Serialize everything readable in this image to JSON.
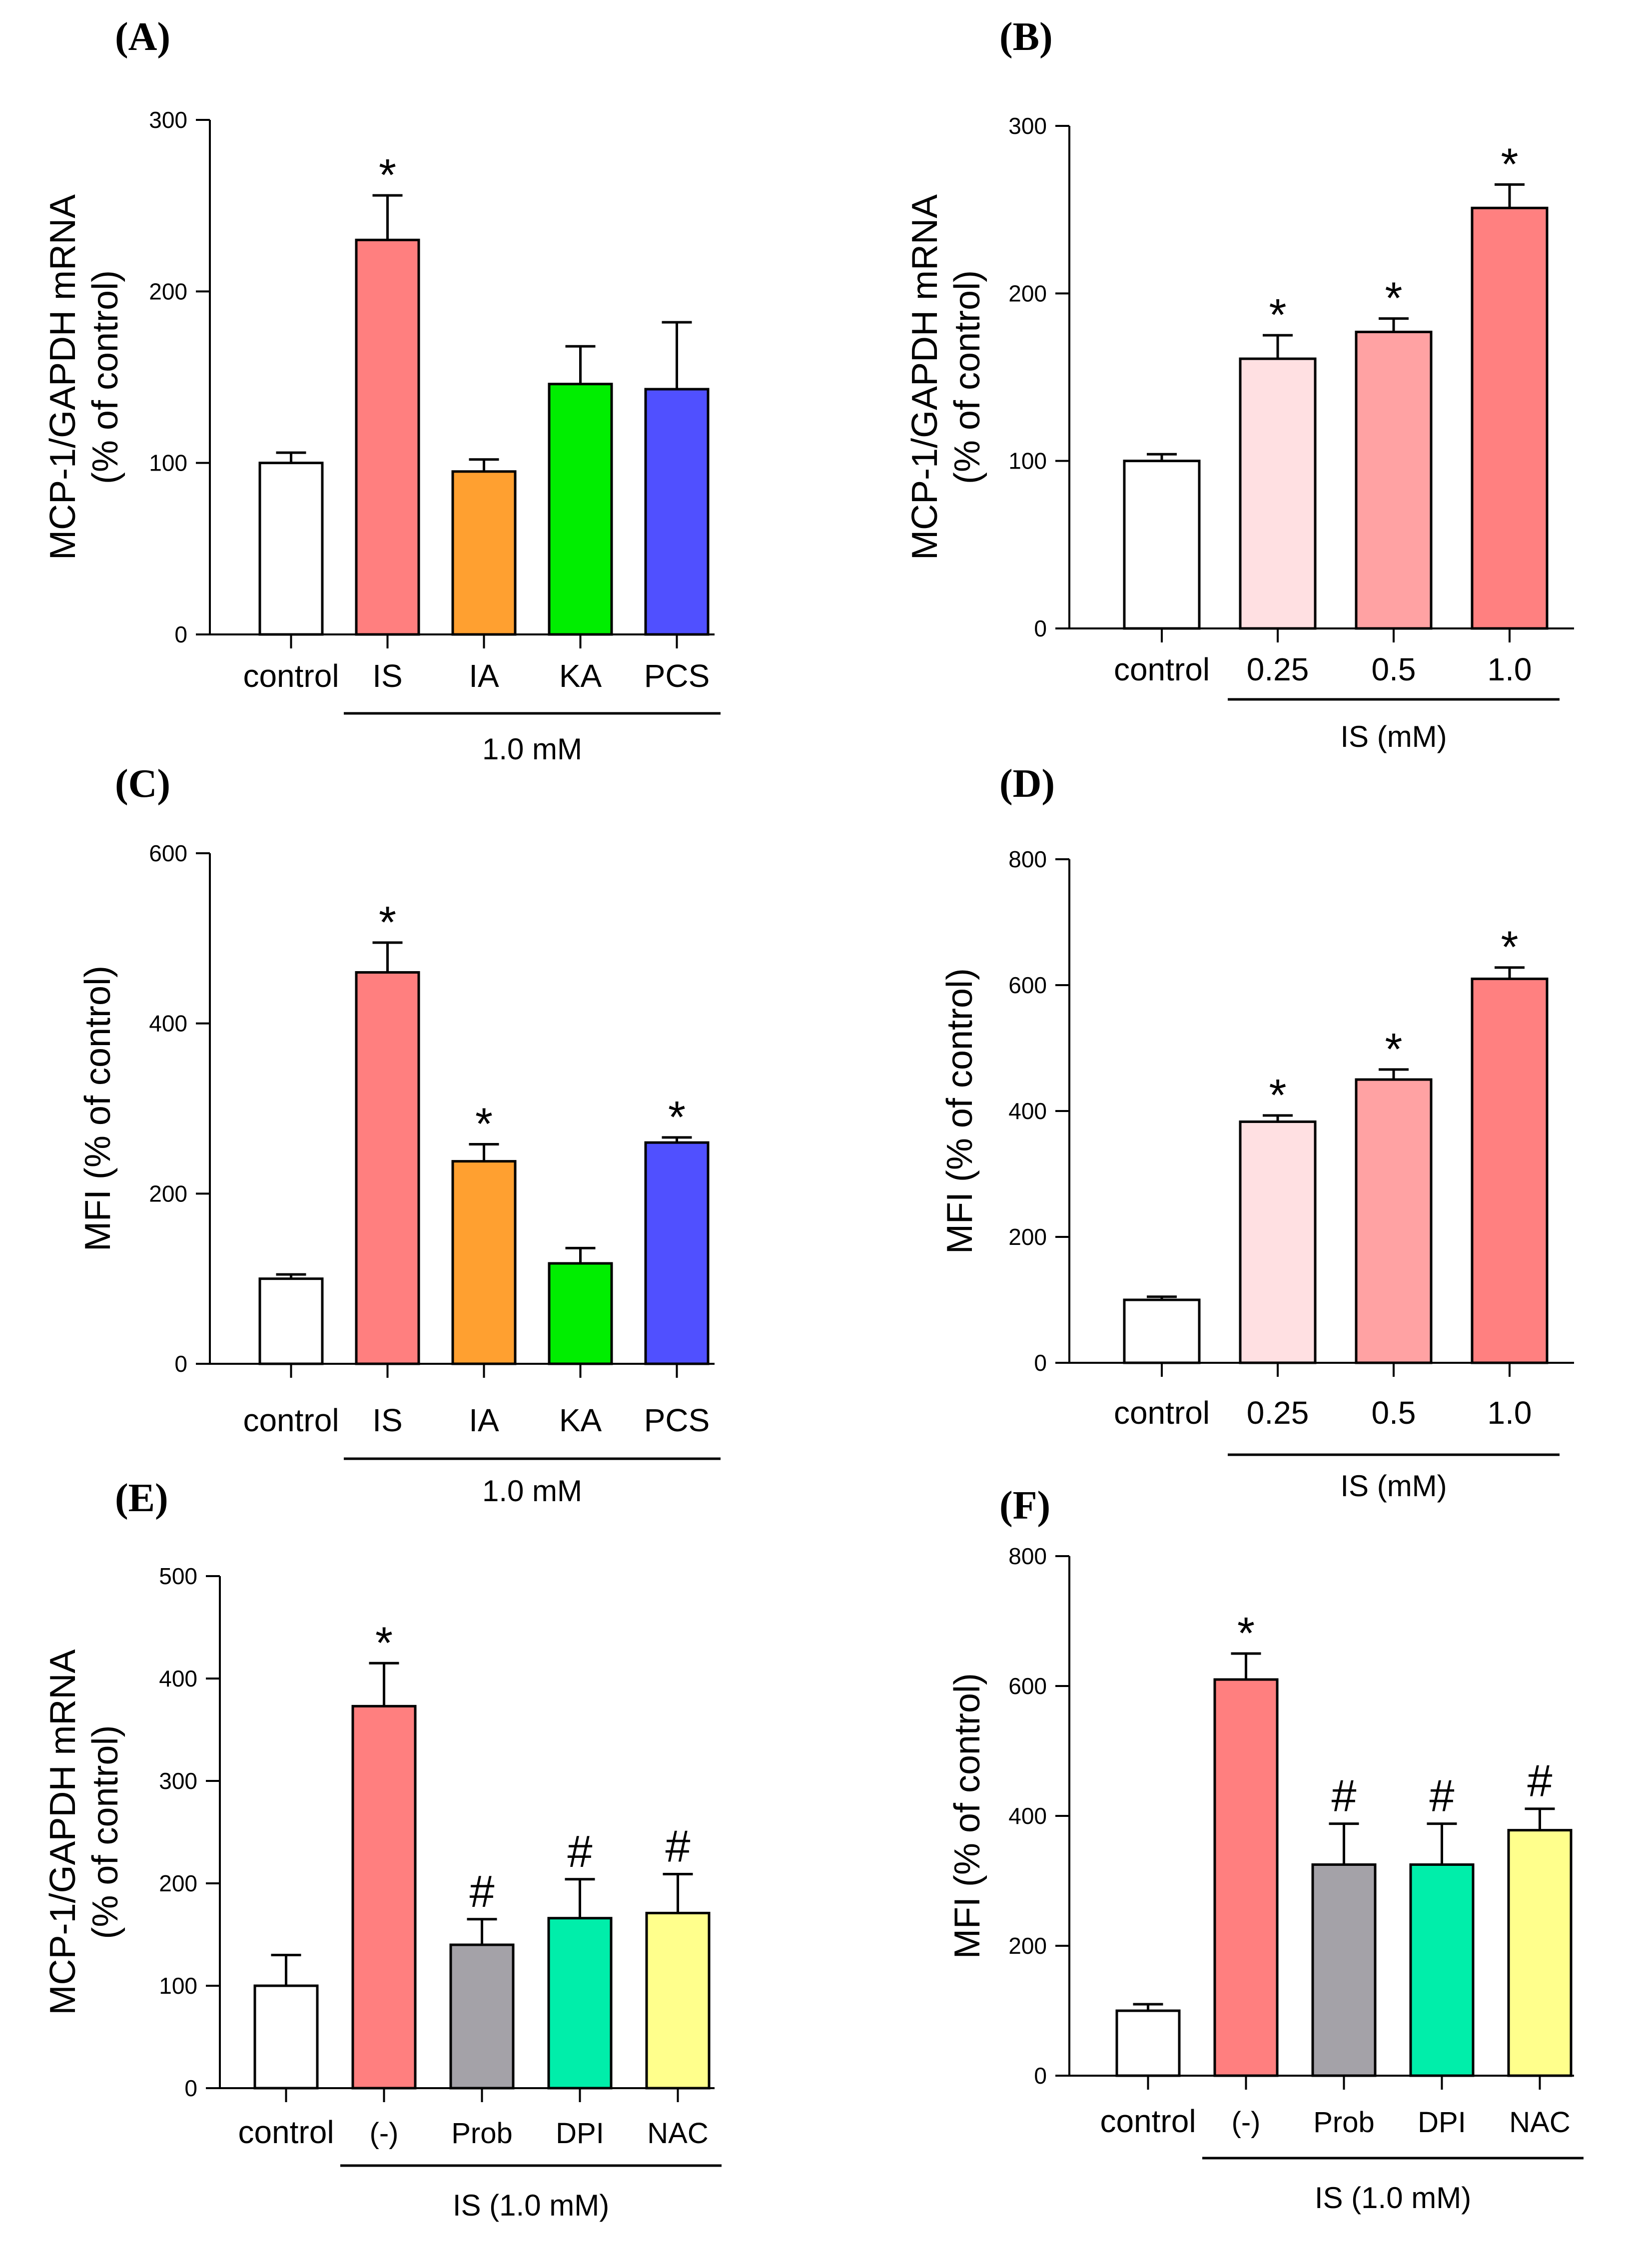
{
  "chart_data": [
    {
      "id": "A",
      "type": "bar",
      "panel_label": "(A)",
      "ylabel_lines": [
        "MCP-1/GAPDH mRNA",
        "(% of control)"
      ],
      "ylim": [
        0,
        300
      ],
      "yticks": [
        0,
        100,
        200,
        300
      ],
      "categories": [
        "control",
        "IS",
        "IA",
        "KA",
        "PCS"
      ],
      "values": [
        100,
        230,
        95,
        146,
        143
      ],
      "errors": [
        6,
        26,
        7,
        22,
        39
      ],
      "colors": [
        "#FFFFFF",
        "#FF7F7F",
        "#FFA030",
        "#00EE00",
        "#5050FF"
      ],
      "significance": [
        "",
        "*",
        "",
        "",
        ""
      ],
      "group": {
        "label": "1.0 mM",
        "from": 1,
        "to": 4
      }
    },
    {
      "id": "B",
      "type": "bar",
      "panel_label": "(B)",
      "ylabel_lines": [
        "MCP-1/GAPDH mRNA",
        "(% of control)"
      ],
      "ylim": [
        0,
        300
      ],
      "yticks": [
        0,
        100,
        200,
        300
      ],
      "categories": [
        "control",
        "0.25",
        "0.5",
        "1.0"
      ],
      "values": [
        100,
        161,
        177,
        251
      ],
      "errors": [
        4,
        14,
        8,
        14
      ],
      "colors": [
        "#FFFFFF",
        "#FFE0E2",
        "#FFA2A3",
        "#FF8080"
      ],
      "significance": [
        "",
        "*",
        "*",
        "*"
      ],
      "group": {
        "label": "IS (mM)",
        "from": 1,
        "to": 3
      }
    },
    {
      "id": "C",
      "type": "bar",
      "panel_label": "(C)",
      "ylabel_lines": [
        "MFI (% of control)"
      ],
      "ylim": [
        0,
        600
      ],
      "yticks": [
        0,
        200,
        400,
        600
      ],
      "categories": [
        "control",
        "IS",
        "IA",
        "KA",
        "PCS"
      ],
      "values": [
        100,
        460,
        238,
        118,
        260
      ],
      "errors": [
        5,
        35,
        20,
        18,
        6
      ],
      "colors": [
        "#FFFFFF",
        "#FF7F7F",
        "#FFA030",
        "#00EE00",
        "#5050FF"
      ],
      "significance": [
        "",
        "*",
        "*",
        "",
        "*"
      ],
      "group": {
        "label": "1.0 mM",
        "from": 1,
        "to": 4
      }
    },
    {
      "id": "D",
      "type": "bar",
      "panel_label": "(D)",
      "ylabel_lines": [
        "MFI (% of control)"
      ],
      "ylim": [
        0,
        800
      ],
      "yticks": [
        0,
        200,
        400,
        600,
        800
      ],
      "categories": [
        "control",
        "0.25",
        "0.5",
        "1.0"
      ],
      "values": [
        100,
        383,
        450,
        610
      ],
      "errors": [
        5,
        10,
        16,
        18
      ],
      "colors": [
        "#FFFFFF",
        "#FFE0E2",
        "#FFA2A3",
        "#FF8080"
      ],
      "significance": [
        "",
        "*",
        "*",
        "*"
      ],
      "group": {
        "label": "IS (mM)",
        "from": 1,
        "to": 3
      }
    },
    {
      "id": "E",
      "type": "bar",
      "panel_label": "(E)",
      "ylabel_lines": [
        "MCP-1/GAPDH mRNA",
        "(% of control)"
      ],
      "ylim": [
        0,
        500
      ],
      "yticks": [
        0,
        100,
        200,
        300,
        400,
        500
      ],
      "categories": [
        "control",
        "(-)",
        "Prob",
        "DPI",
        "NAC"
      ],
      "values": [
        100,
        373,
        140,
        166,
        171
      ],
      "errors": [
        30,
        42,
        25,
        38,
        38
      ],
      "colors": [
        "#FFFFFF",
        "#FF7F7F",
        "#A4A2A8",
        "#00EEAA",
        "#FFFF8C"
      ],
      "significance": [
        "",
        "*",
        "#",
        "#",
        "#"
      ],
      "group": {
        "label": "IS (1.0 mM)",
        "from": 1,
        "to": 4
      }
    },
    {
      "id": "F",
      "type": "bar",
      "panel_label": "(F)",
      "ylabel_lines": [
        "MFI (% of control)"
      ],
      "ylim": [
        0,
        800
      ],
      "yticks": [
        0,
        200,
        400,
        600,
        800
      ],
      "categories": [
        "control",
        "(-)",
        "Prob",
        "DPI",
        "NAC"
      ],
      "values": [
        100,
        610,
        325,
        325,
        378
      ],
      "errors": [
        10,
        40,
        63,
        63,
        33
      ],
      "colors": [
        "#FFFFFF",
        "#FF7F7F",
        "#A4A2A8",
        "#00EEAA",
        "#FFFF8C"
      ],
      "significance": [
        "",
        "*",
        "#",
        "#",
        "#"
      ],
      "group": {
        "label": "IS (1.0 mM)",
        "from": 1,
        "to": 4
      }
    }
  ]
}
